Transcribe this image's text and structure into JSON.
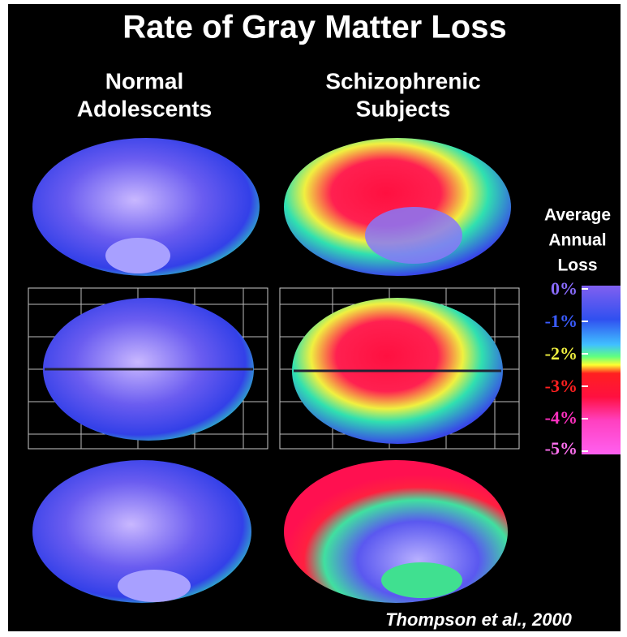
{
  "header": {
    "title": "Rate of Gray Matter Loss"
  },
  "columns": [
    {
      "lines": [
        "Normal",
        "Adolescents"
      ]
    },
    {
      "lines": [
        "Schizophrenic",
        "Subjects"
      ]
    }
  ],
  "legend": {
    "title_lines": [
      "Average",
      "Annual",
      "Loss"
    ],
    "labels": [
      "0%",
      "-1%",
      "-2%",
      "-3%",
      "-4%",
      "-5%"
    ]
  },
  "citation": "Thompson et al., 2000"
}
